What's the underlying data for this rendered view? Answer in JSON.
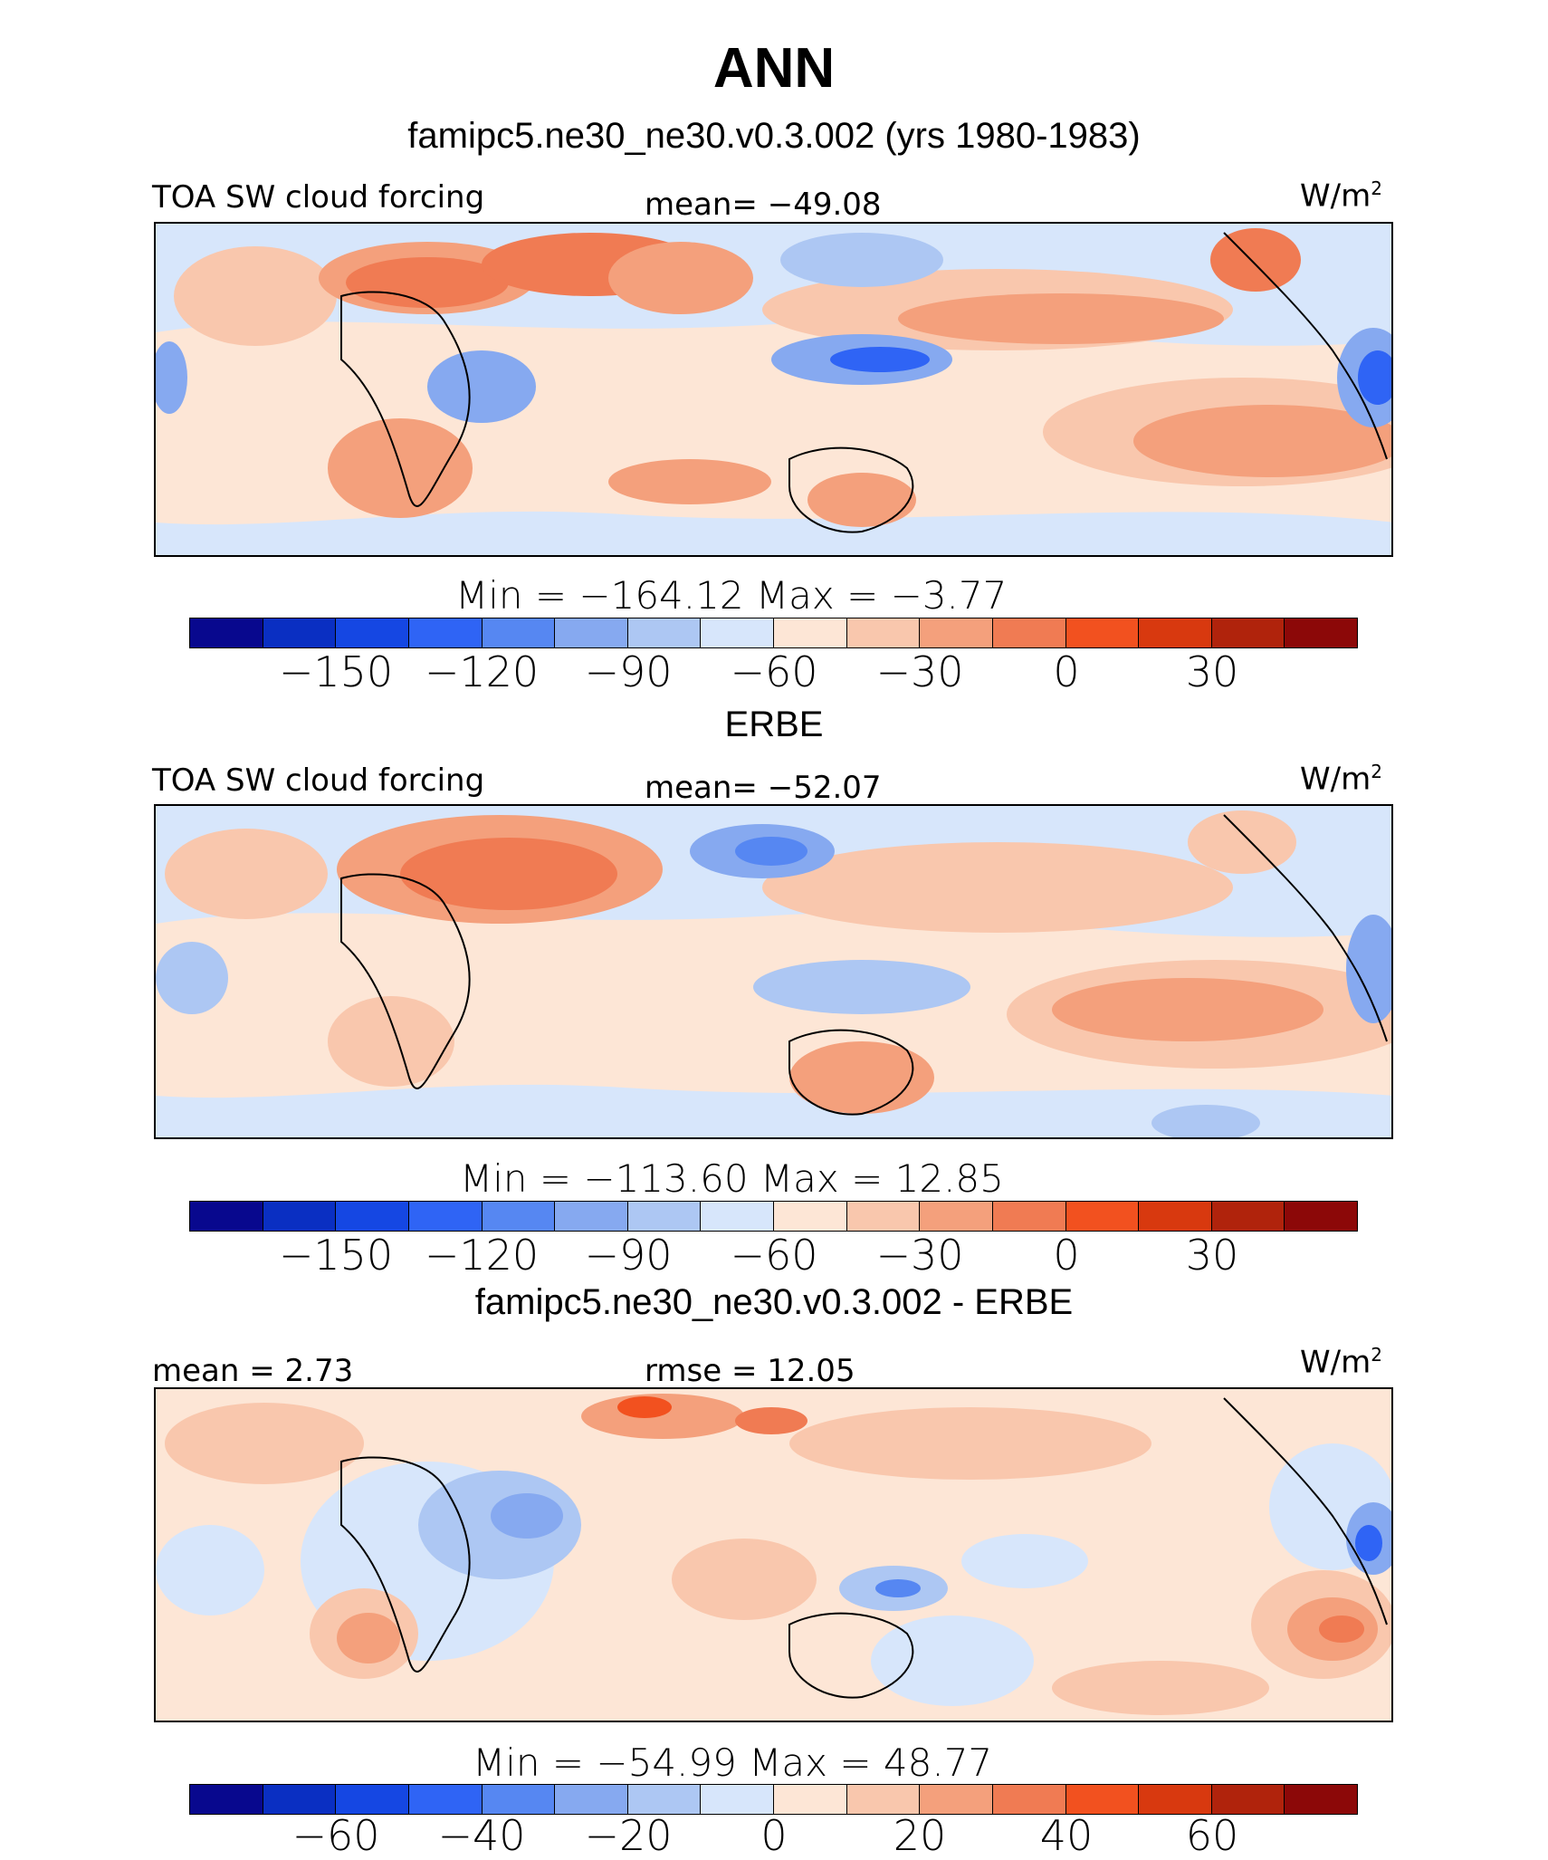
{
  "header": {
    "title": "ANN",
    "subtitle": "famipc5.ne30_ne30.v0.3.002 (yrs 1980-1983)"
  },
  "colormap": [
    "#08088e",
    "#0a2fc2",
    "#1547e3",
    "#2f64f5",
    "#5687f2",
    "#86a9f0",
    "#adc7f3",
    "#d7e6fb",
    "#fde6d6",
    "#f9c7ad",
    "#f4a07c",
    "#f07b53",
    "#f2511f",
    "#d8390f",
    "#b0230c",
    "#8c0808"
  ],
  "panels": [
    {
      "heading": "",
      "left_label": "TOA SW cloud forcing",
      "center_label": "mean= −49.08",
      "units": "W/m",
      "units_sup": "2",
      "minmax": "Min  =  −164.12  Max  =    −3.77",
      "ticks": [
        "−150",
        "−120",
        "−90",
        "−60",
        "−30",
        "0",
        "30"
      ]
    },
    {
      "heading": "ERBE",
      "left_label": "TOA SW cloud forcing",
      "center_label": "mean= −52.07",
      "units": "W/m",
      "units_sup": "2",
      "minmax": "Min  =  −113.60  Max  =   12.85",
      "ticks": [
        "−150",
        "−120",
        "−90",
        "−60",
        "−30",
        "0",
        "30"
      ]
    },
    {
      "heading": "famipc5.ne30_ne30.v0.3.002 - ERBE",
      "left_label": "mean  =    2.73",
      "center_label": "rmse  =   12.05",
      "units": "W/m",
      "units_sup": "2",
      "minmax": "Min  =  −54.99  Max  =   48.77",
      "ticks": [
        "−60",
        "−40",
        "−20",
        "0",
        "20",
        "40",
        "60"
      ]
    }
  ]
}
